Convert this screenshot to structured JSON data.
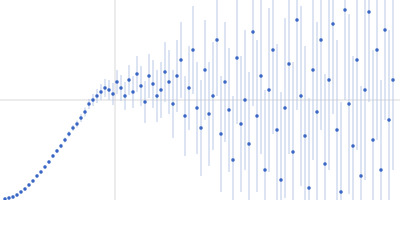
{
  "chart_data": {
    "type": "scatter",
    "xlim": [
      0,
      400
    ],
    "ylim": [
      0,
      200
    ],
    "xticks": [
      115
    ],
    "yticks": [
      100
    ],
    "grid": true,
    "series": [
      {
        "color": "#3a66c4",
        "error_color": "#b9c9e9",
        "x": [
          5,
          9,
          13,
          17,
          21,
          25,
          29,
          33,
          37,
          41,
          45,
          49,
          53,
          57,
          61,
          65,
          69,
          73,
          77,
          81,
          85,
          89,
          93,
          97,
          101,
          105,
          109,
          113,
          117,
          121,
          125,
          129,
          133,
          137,
          141,
          145,
          149,
          153,
          157,
          161,
          165,
          169,
          173,
          177,
          181,
          185,
          189,
          193,
          197,
          201,
          205,
          209,
          213,
          217,
          221,
          225,
          229,
          233,
          237,
          241,
          245,
          249,
          253,
          257,
          261,
          265,
          269,
          273,
          277,
          281,
          285,
          289,
          293,
          297,
          301,
          305,
          309,
          313,
          317,
          321,
          325,
          329,
          333,
          337,
          341,
          345,
          349,
          353,
          357,
          361,
          365,
          369,
          373,
          377,
          381,
          385,
          389,
          393
        ],
        "values": [
          1,
          2,
          3,
          5,
          8,
          11,
          15,
          19,
          24,
          28,
          33,
          38,
          44,
          49,
          54,
          60,
          66,
          72,
          76,
          82,
          88,
          96,
          100,
          104,
          108,
          112,
          110,
          106,
          118,
          112,
          104,
          120,
          108,
          126,
          114,
          98,
          124,
          116,
          104,
          110,
          128,
          118,
          96,
          124,
          140,
          84,
          112,
          150,
          92,
          72,
          130,
          86,
          104,
          160,
          66,
          118,
          90,
          40,
          142,
          76,
          100,
          56,
          168,
          84,
          124,
          30,
          110,
          150,
          70,
          20,
          92,
          136,
          48,
          180,
          104,
          64,
          12,
          130,
          88,
          160,
          36,
          120,
          176,
          70,
          8,
          190,
          96,
          54,
          140,
          24,
          110,
          188,
          60,
          150,
          30,
          170,
          80,
          120
        ],
        "errors": [
          0.5,
          0.5,
          0.6,
          0.7,
          0.8,
          0.9,
          1,
          1,
          1.2,
          1.3,
          1.5,
          1.6,
          1.8,
          2,
          2.2,
          2.5,
          2.8,
          3,
          3.5,
          4,
          4.5,
          5,
          6,
          7,
          8,
          9,
          10,
          11,
          12,
          13,
          14,
          15,
          16,
          18,
          20,
          21,
          22,
          24,
          26,
          28,
          30,
          32,
          34,
          36,
          38,
          40,
          42,
          44,
          46,
          48,
          50,
          52,
          54,
          56,
          58,
          60,
          62,
          64,
          66,
          68,
          70,
          72,
          74,
          76,
          78,
          80,
          82,
          84,
          86,
          88,
          90,
          90,
          90,
          90,
          90,
          90,
          90,
          90,
          90,
          90,
          90,
          90,
          90,
          90,
          90,
          90,
          90,
          90,
          90,
          90,
          90,
          90,
          90,
          90,
          90,
          90,
          90,
          90
        ]
      }
    ]
  }
}
